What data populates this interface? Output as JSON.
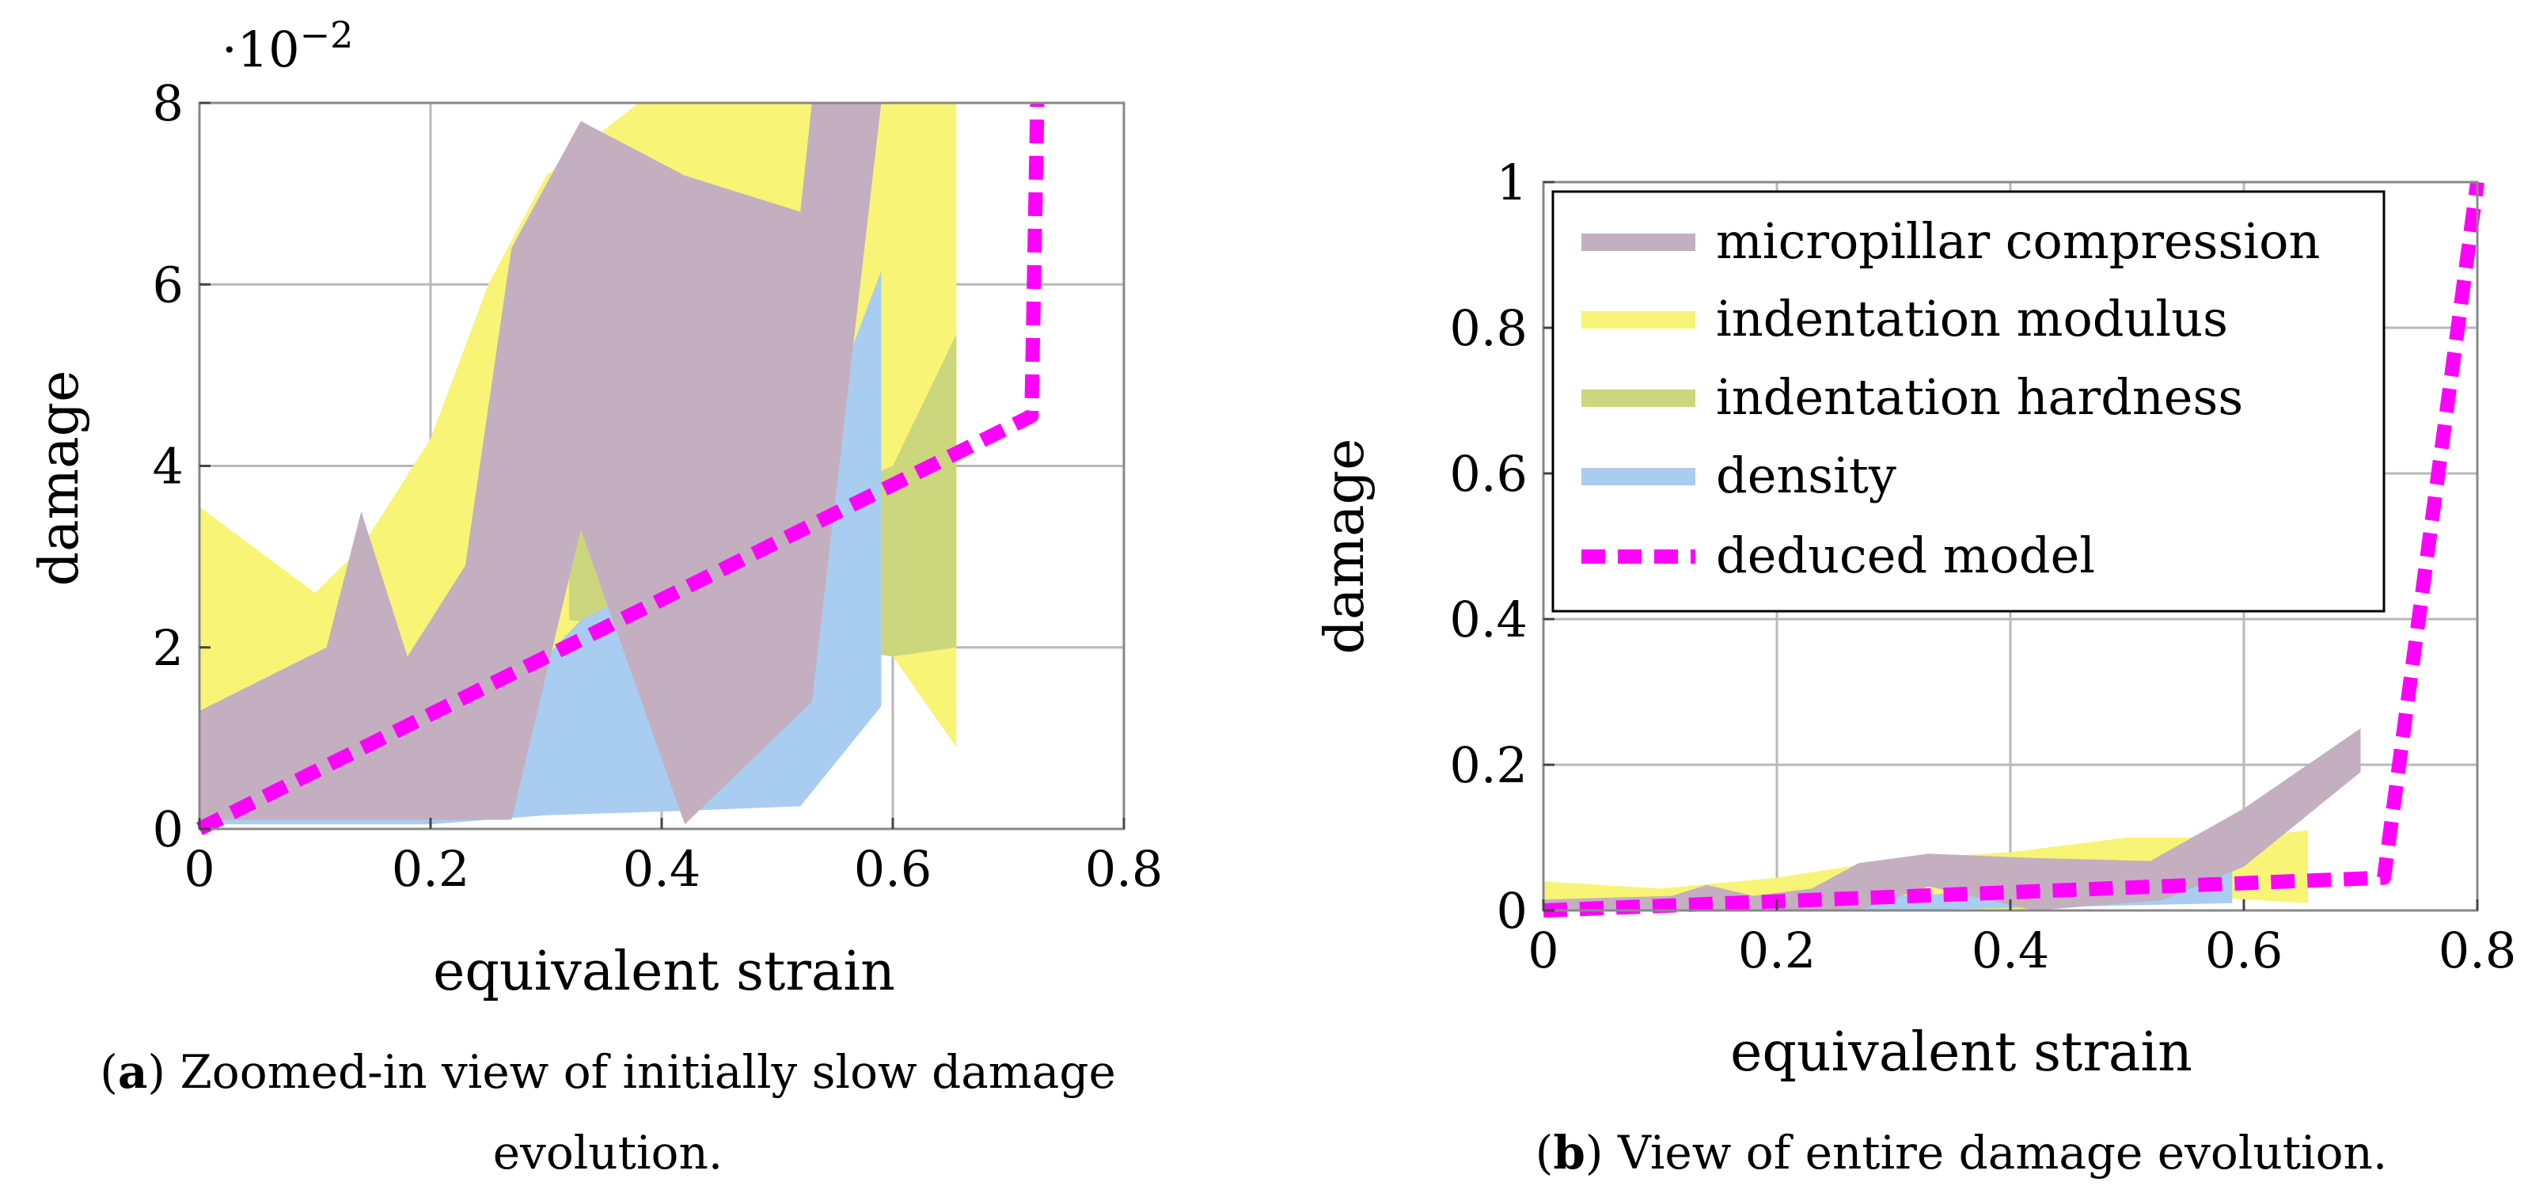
{
  "chart_data": [
    {
      "type": "area",
      "panel": "a",
      "xlabel": "equivalent strain",
      "ylabel": "damage",
      "y_scale_label": "·10",
      "y_scale_exp": "−2",
      "xlim": [
        0,
        0.8
      ],
      "ylim": [
        0,
        8
      ],
      "xticks": [
        0,
        0.2,
        0.4,
        0.6,
        0.8
      ],
      "xtick_labels": [
        "0",
        "0.2",
        "0.4",
        "0.6",
        "0.8"
      ],
      "yticks": [
        0,
        2,
        4,
        6,
        8
      ],
      "ytick_labels": [
        "0",
        "2",
        "4",
        "6",
        "8"
      ],
      "grid": true,
      "caption_label": "a",
      "caption_lines": [
        ") Zoomed-in view of initially slow damage",
        "evolution."
      ],
      "bands": [
        {
          "name": "indentation modulus",
          "color": "#f7f476",
          "upper": [
            [
              0,
              3.55
            ],
            [
              0.1,
              2.6
            ],
            [
              0.14,
              3.1
            ],
            [
              0.2,
              4.3
            ],
            [
              0.25,
              6.0
            ],
            [
              0.3,
              7.2
            ],
            [
              0.38,
              8.0
            ],
            [
              0.5,
              8.0
            ],
            [
              0.55,
              8.0
            ],
            [
              0.6,
              8.0
            ],
            [
              0.655,
              8.0
            ]
          ],
          "lower": [
            [
              0,
              0.1
            ],
            [
              0.1,
              0.1
            ],
            [
              0.2,
              0.1
            ],
            [
              0.3,
              0.15
            ],
            [
              0.4,
              0.2
            ],
            [
              0.5,
              0.3
            ],
            [
              0.55,
              2.5
            ],
            [
              0.6,
              1.9
            ],
            [
              0.655,
              0.9
            ]
          ]
        },
        {
          "name": "indentation hardness",
          "color": "#ccd67c",
          "upper": [
            [
              0.32,
              3.75
            ],
            [
              0.42,
              3.0
            ],
            [
              0.6,
              4.0
            ],
            [
              0.655,
              5.45
            ]
          ],
          "lower": [
            [
              0.32,
              2.3
            ],
            [
              0.42,
              2.2
            ],
            [
              0.6,
              1.9
            ],
            [
              0.655,
              2.0
            ]
          ]
        },
        {
          "name": "density",
          "color": "#a9cdf0",
          "upper": [
            [
              0,
              0.9
            ],
            [
              0.05,
              0.8
            ],
            [
              0.2,
              0.9
            ],
            [
              0.3,
              1.9
            ],
            [
              0.33,
              2.3
            ],
            [
              0.45,
              3.1
            ],
            [
              0.52,
              3.8
            ],
            [
              0.59,
              6.15
            ]
          ],
          "lower": [
            [
              0,
              0.05
            ],
            [
              0.2,
              0.05
            ],
            [
              0.3,
              0.15
            ],
            [
              0.42,
              0.2
            ],
            [
              0.52,
              0.25
            ],
            [
              0.59,
              1.35
            ]
          ]
        },
        {
          "name": "micropillar compression",
          "color": "#c3afbf",
          "upper": [
            [
              0,
              1.3
            ],
            [
              0.11,
              2.0
            ],
            [
              0.14,
              3.5
            ],
            [
              0.18,
              1.9
            ],
            [
              0.23,
              2.9
            ],
            [
              0.27,
              6.4
            ],
            [
              0.33,
              7.8
            ],
            [
              0.42,
              7.2
            ],
            [
              0.52,
              6.8
            ],
            [
              0.53,
              8.0
            ],
            [
              0.59,
              8.0
            ]
          ],
          "lower": [
            [
              0,
              0.1
            ],
            [
              0.1,
              0.1
            ],
            [
              0.2,
              0.1
            ],
            [
              0.27,
              0.1
            ],
            [
              0.33,
              3.3
            ],
            [
              0.42,
              0.05
            ],
            [
              0.53,
              1.4
            ]
          ]
        }
      ],
      "model": {
        "name": "deduced model",
        "color": "#ff00ff",
        "x": [
          0,
          0.72,
          0.725
        ],
        "y": [
          0,
          4.55,
          8.0
        ]
      }
    },
    {
      "type": "area",
      "panel": "b",
      "xlabel": "equivalent strain",
      "ylabel": "damage",
      "xlim": [
        0,
        0.8
      ],
      "ylim": [
        0,
        1
      ],
      "xticks": [
        0,
        0.2,
        0.4,
        0.6,
        0.8
      ],
      "xtick_labels": [
        "0",
        "0.2",
        "0.4",
        "0.6",
        "0.8"
      ],
      "yticks": [
        0,
        0.2,
        0.4,
        0.6,
        0.8,
        1
      ],
      "ytick_labels": [
        "0",
        "0.2",
        "0.4",
        "0.6",
        "0.8",
        "1"
      ],
      "grid": true,
      "legend_position": "top-left",
      "caption_label": "b",
      "caption_lines": [
        ") View of entire damage evolution."
      ],
      "legend": [
        {
          "label": "micropillar compression",
          "color": "#c3afbf",
          "style": "solid"
        },
        {
          "label": "indentation modulus",
          "color": "#f7f476",
          "style": "solid"
        },
        {
          "label": "indentation hardness",
          "color": "#ccd67c",
          "style": "solid"
        },
        {
          "label": "density",
          "color": "#a9cdf0",
          "style": "solid"
        },
        {
          "label": "deduced model",
          "color": "#ff00ff",
          "style": "dashed"
        }
      ],
      "bands": [
        {
          "name": "indentation modulus",
          "color": "#f7f476",
          "upper": [
            [
              0,
              0.04
            ],
            [
              0.1,
              0.03
            ],
            [
              0.2,
              0.045
            ],
            [
              0.3,
              0.07
            ],
            [
              0.4,
              0.08
            ],
            [
              0.5,
              0.1
            ],
            [
              0.6,
              0.1
            ],
            [
              0.655,
              0.11
            ]
          ],
          "lower": [
            [
              0,
              0.0
            ],
            [
              0.2,
              0.0
            ],
            [
              0.4,
              0.0
            ],
            [
              0.55,
              0.02
            ],
            [
              0.655,
              0.01
            ]
          ]
        },
        {
          "name": "density",
          "color": "#a9cdf0",
          "upper": [
            [
              0,
              0.01
            ],
            [
              0.3,
              0.02
            ],
            [
              0.45,
              0.03
            ],
            [
              0.59,
              0.06
            ]
          ],
          "lower": [
            [
              0,
              0.0
            ],
            [
              0.3,
              0.0
            ],
            [
              0.59,
              0.01
            ]
          ]
        },
        {
          "name": "micropillar compression",
          "color": "#c3afbf",
          "upper": [
            [
              0,
              0.015
            ],
            [
              0.11,
              0.02
            ],
            [
              0.14,
              0.035
            ],
            [
              0.18,
              0.02
            ],
            [
              0.23,
              0.03
            ],
            [
              0.27,
              0.065
            ],
            [
              0.33,
              0.078
            ],
            [
              0.42,
              0.072
            ],
            [
              0.52,
              0.068
            ],
            [
              0.6,
              0.14
            ],
            [
              0.7,
              0.25
            ]
          ],
          "lower": [
            [
              0,
              0.0
            ],
            [
              0.27,
              0.0
            ],
            [
              0.33,
              0.033
            ],
            [
              0.42,
              0.0
            ],
            [
              0.53,
              0.014
            ],
            [
              0.6,
              0.06
            ],
            [
              0.7,
              0.19
            ]
          ]
        }
      ],
      "model": {
        "name": "deduced model",
        "color": "#ff00ff",
        "x": [
          0,
          0.72,
          0.8
        ],
        "y": [
          0,
          0.045,
          1.0
        ]
      }
    }
  ]
}
